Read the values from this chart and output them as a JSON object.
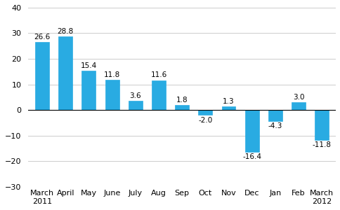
{
  "categories": [
    "March\n2011",
    "April",
    "May",
    "June",
    "July",
    "Aug",
    "Sep",
    "Oct",
    "Nov",
    "Dec",
    "Jan",
    "Feb",
    "March\n2012"
  ],
  "values": [
    26.6,
    28.8,
    15.4,
    11.8,
    3.6,
    11.6,
    1.8,
    -2.0,
    1.3,
    -16.4,
    -4.3,
    3.0,
    -11.8
  ],
  "bar_color": "#29abe2",
  "ylim": [
    -30,
    40
  ],
  "yticks": [
    -30,
    -20,
    -10,
    0,
    10,
    20,
    30,
    40
  ],
  "label_fontsize": 7.5,
  "tick_fontsize": 8,
  "bar_width": 0.6,
  "background_color": "#ffffff",
  "grid_color": "#cccccc"
}
